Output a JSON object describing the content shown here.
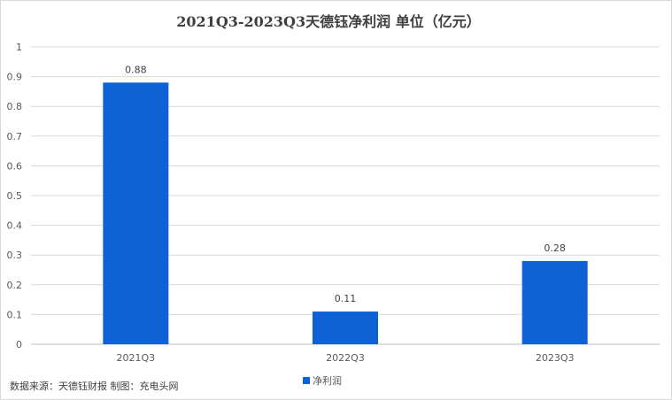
{
  "source_note": "数据来源：天德钰财报 制图：充电头网",
  "chart_data": {
    "type": "bar",
    "title": "2021Q3-2023Q3天德钰净利润 单位（亿元）",
    "categories": [
      "2021Q3",
      "2022Q3",
      "2023Q3"
    ],
    "series": [
      {
        "name": "净利润",
        "values": [
          0.88,
          0.11,
          0.28
        ]
      }
    ],
    "data_labels": [
      "0.88",
      "0.11",
      "0.28"
    ],
    "ylim": [
      0,
      1
    ],
    "yticks": [
      "0",
      "0.1",
      "0.2",
      "0.3",
      "0.4",
      "0.5",
      "0.6",
      "0.7",
      "0.8",
      "0.9",
      "1"
    ],
    "grid": true,
    "legend_position": "bottom",
    "colors": {
      "bar": "#0f61d6",
      "grid": "#d9d9d9",
      "axis": "#bfbfbf"
    }
  }
}
